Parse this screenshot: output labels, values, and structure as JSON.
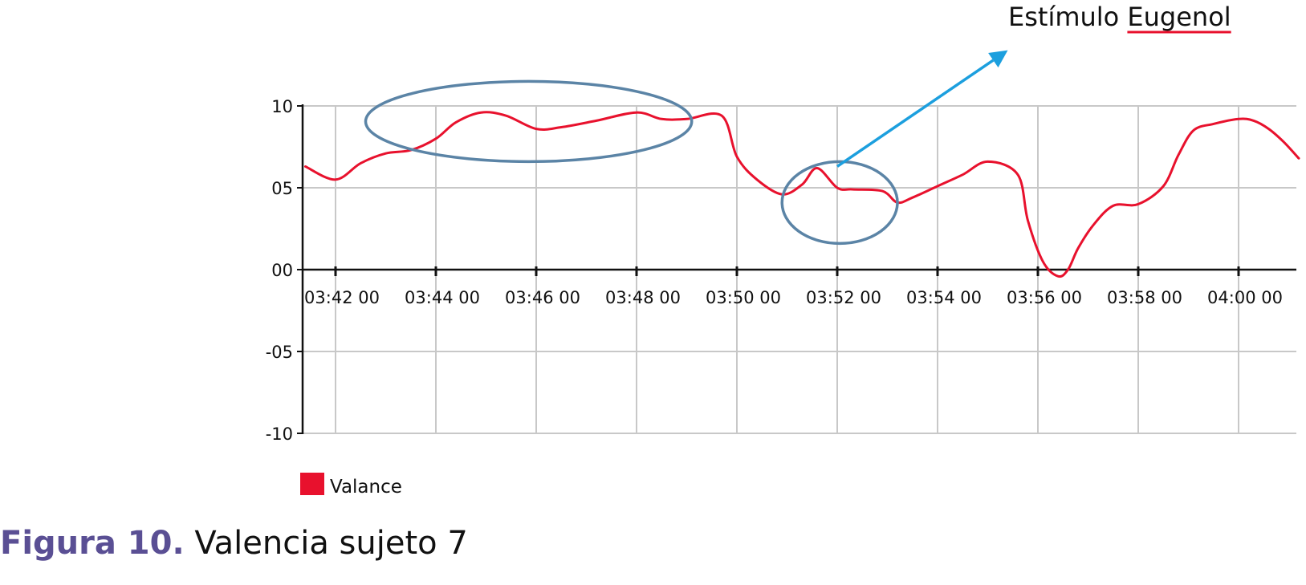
{
  "chart_data": {
    "type": "line",
    "x_ticks": [
      "03:42 00",
      "03:44 00",
      "03:46 00",
      "03:48 00",
      "03:50 00",
      "03:52 00",
      "03:54 00",
      "03:56 00",
      "03:58 00",
      "04:00 00"
    ],
    "y_ticks": [
      "10",
      "05",
      "00",
      "-05",
      "-10"
    ],
    "ylim": [
      -10,
      10
    ],
    "xlim_minutes": [
      221.4,
      241.2
    ],
    "grid": true,
    "legend_position": "bottom-left",
    "series": [
      {
        "name": "Valance",
        "color": "#e8112d",
        "x_minutes": [
          221.4,
          222.0,
          222.5,
          223.0,
          223.5,
          224.0,
          224.4,
          224.9,
          225.4,
          226.0,
          226.5,
          227.2,
          228.0,
          228.5,
          229.0,
          229.7,
          230.0,
          230.4,
          230.9,
          231.3,
          231.6,
          232.0,
          232.3,
          232.9,
          233.2,
          233.5,
          234.0,
          234.5,
          235.0,
          235.6,
          235.8,
          236.1,
          236.4,
          236.6,
          236.8,
          237.1,
          237.5,
          238.0,
          238.5,
          238.8,
          239.1,
          239.5,
          240.0,
          240.3,
          240.6,
          240.9,
          241.2
        ],
        "y": [
          6.3,
          5.5,
          6.5,
          7.1,
          7.3,
          8.0,
          9.0,
          9.6,
          9.4,
          8.6,
          8.7,
          9.1,
          9.6,
          9.2,
          9.2,
          9.4,
          6.9,
          5.5,
          4.6,
          5.2,
          6.2,
          5.0,
          4.9,
          4.8,
          4.1,
          4.4,
          5.1,
          5.8,
          6.6,
          5.8,
          3.0,
          0.5,
          -0.4,
          0.0,
          1.3,
          2.7,
          3.9,
          4.0,
          5.1,
          7.0,
          8.5,
          8.9,
          9.2,
          9.1,
          8.6,
          7.8,
          6.8
        ]
      }
    ],
    "annotations": {
      "stimulus_text_prefix": "Estímulo ",
      "stimulus_text_word": "Eugenol",
      "ellipse_1_x_minutes": [
        222.6,
        229.1
      ],
      "ellipse_1_y": [
        6.6,
        11.5
      ],
      "ellipse_2_x_minutes": [
        230.9,
        233.2
      ],
      "ellipse_2_y": [
        1.6,
        6.6
      ],
      "arrow_from": [
        232.0,
        6.3
      ],
      "arrow_to": [
        235.4,
        13.4
      ]
    }
  },
  "colors": {
    "line": "#e8112d",
    "ellipse": "#5b84a6",
    "arrow": "#1c9fde",
    "grid": "#c8c8c8",
    "underline": "#e8112d",
    "caption_number": "#5a4f94"
  },
  "legend": {
    "label": "Valance"
  },
  "caption": {
    "number": "Figura 10.",
    "text": " Valencia sujeto 7"
  }
}
